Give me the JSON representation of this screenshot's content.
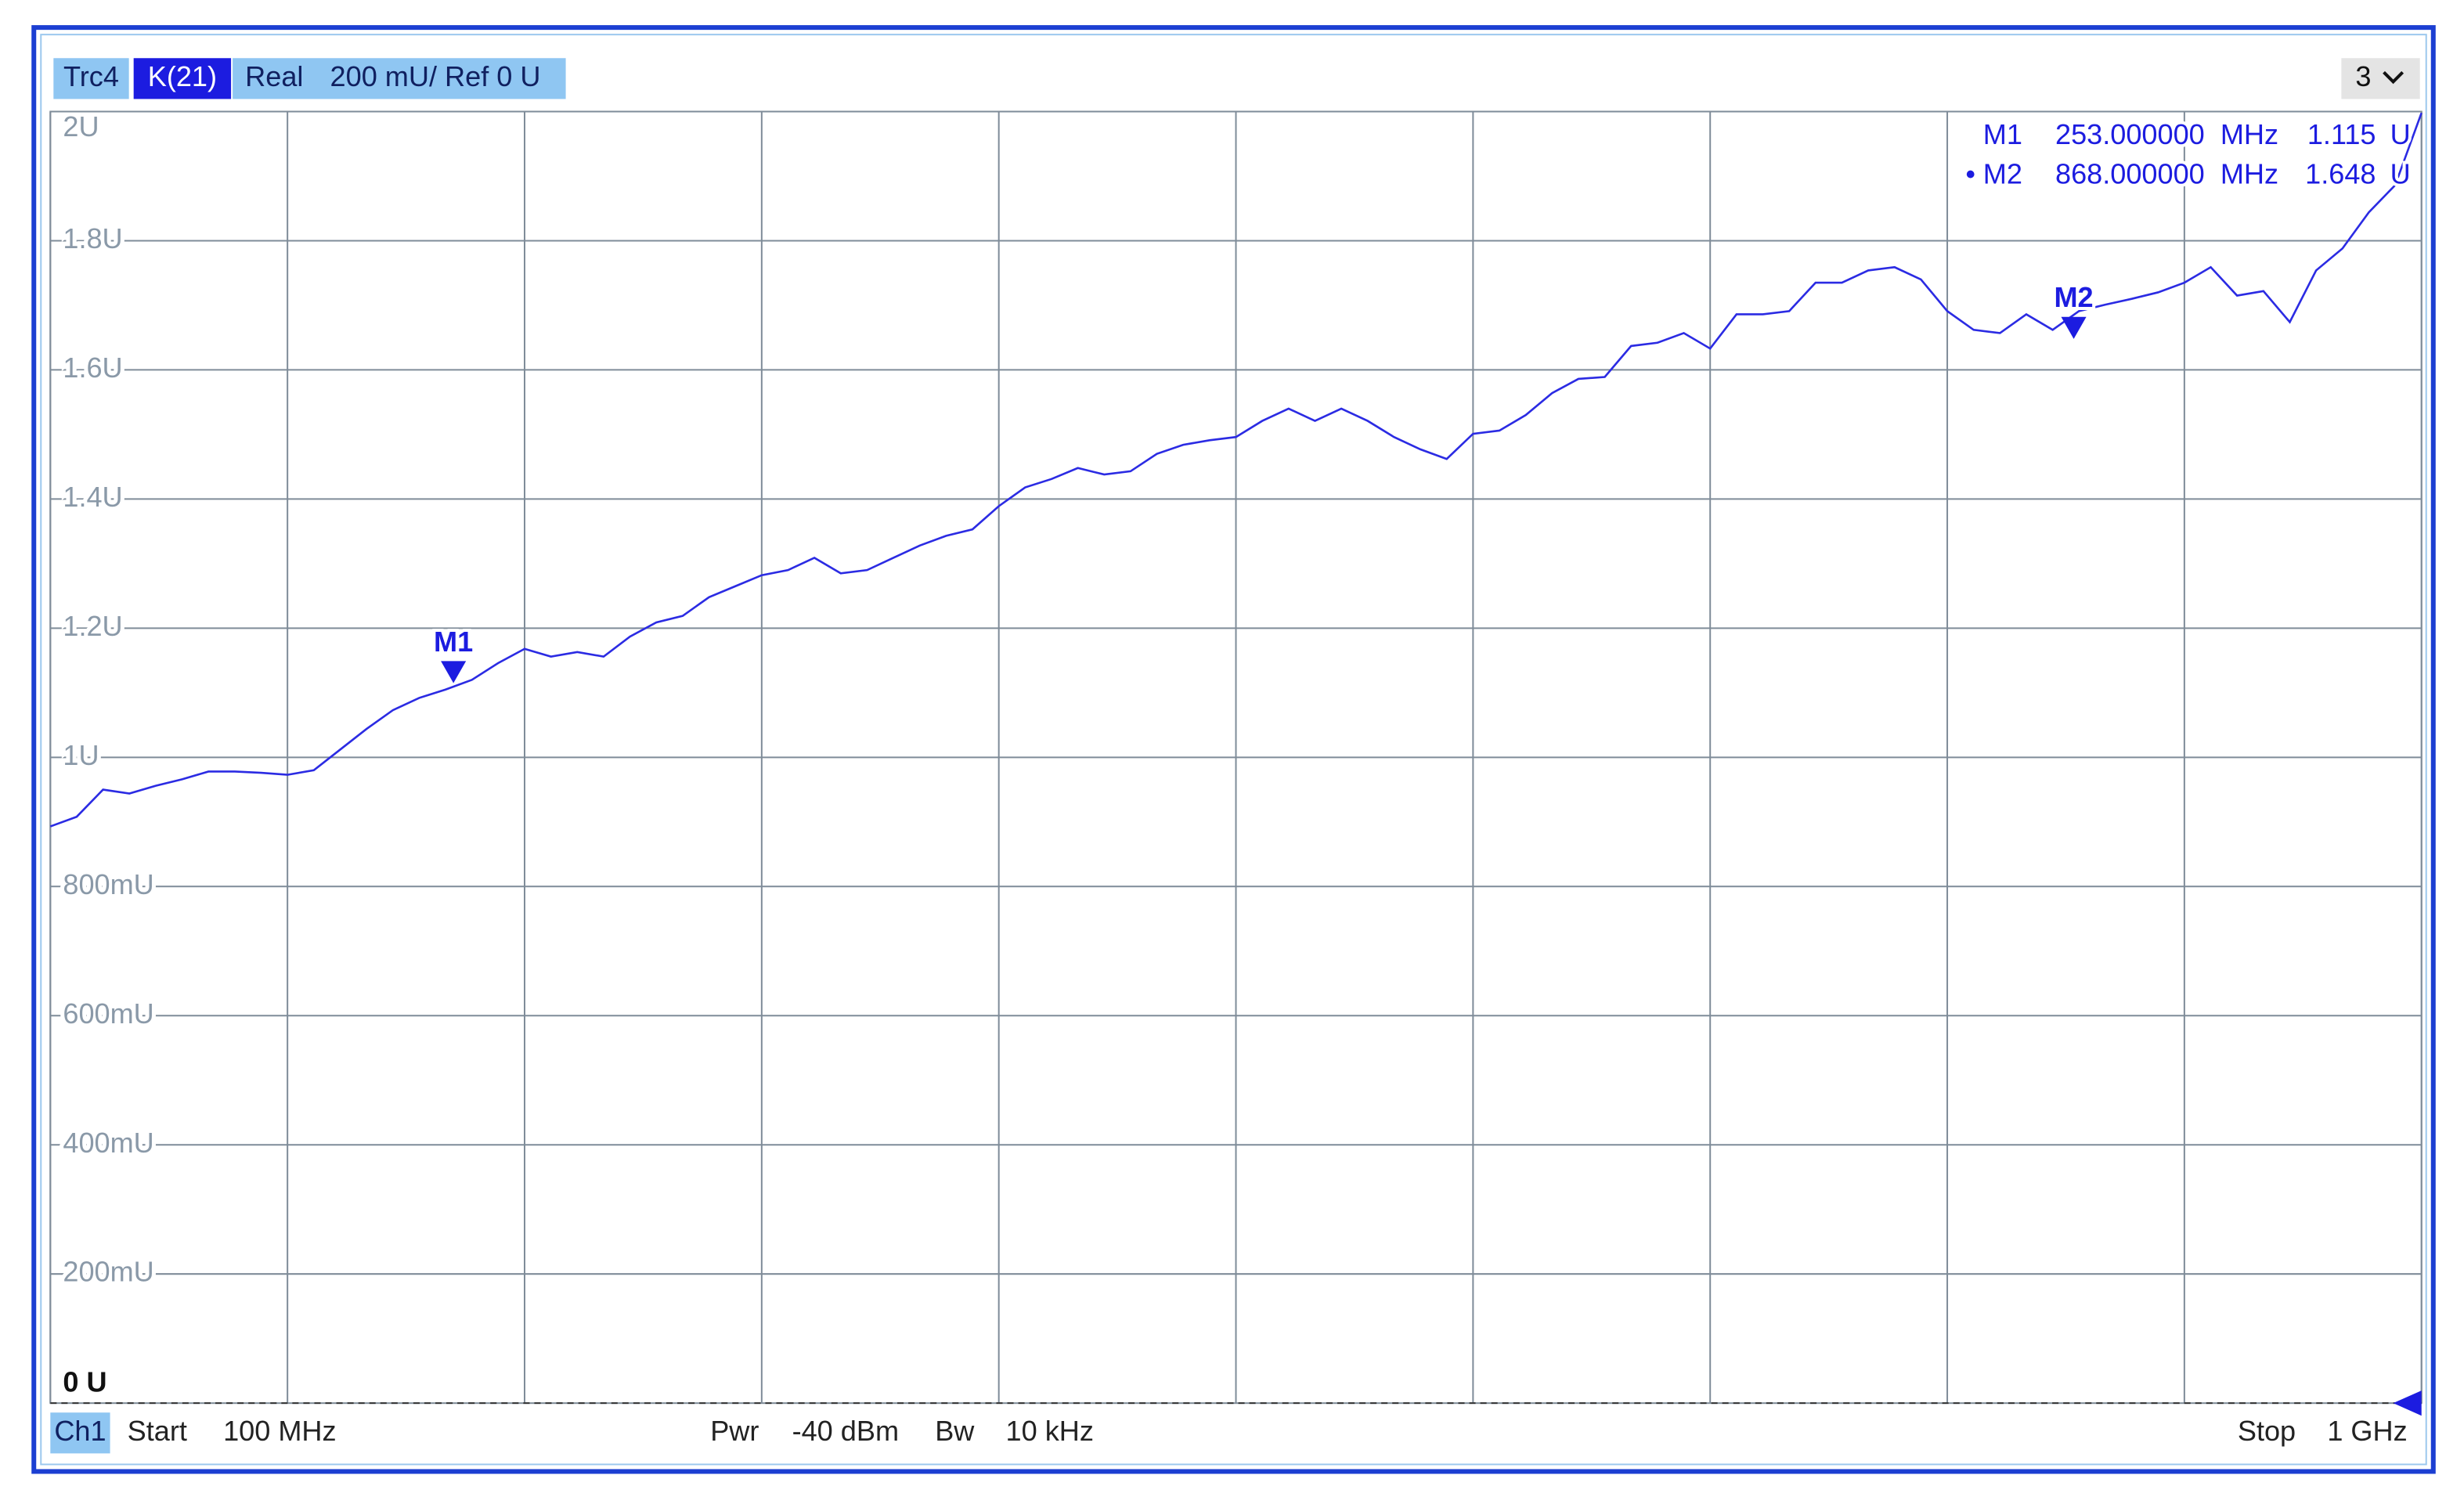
{
  "header": {
    "trace": "Trc4",
    "measurement": "K(21)",
    "format": "Real",
    "scale": "200 mU/ Ref 0 U",
    "channel_select": "3"
  },
  "chart_data": {
    "type": "line",
    "x": [
      100,
      110,
      120,
      130,
      140,
      150,
      160,
      170,
      180,
      190,
      200,
      210,
      220,
      230,
      240,
      250,
      260,
      270,
      280,
      290,
      300,
      310,
      320,
      330,
      340,
      350,
      360,
      370,
      380,
      390,
      400,
      410,
      420,
      430,
      440,
      450,
      460,
      470,
      480,
      490,
      500,
      510,
      520,
      530,
      540,
      550,
      560,
      570,
      580,
      590,
      600,
      610,
      620,
      630,
      640,
      650,
      660,
      670,
      680,
      690,
      700,
      710,
      720,
      730,
      740,
      750,
      760,
      770,
      780,
      790,
      800,
      810,
      820,
      830,
      840,
      850,
      860,
      870,
      880,
      890,
      900,
      910,
      920,
      930,
      940,
      950,
      960,
      970,
      980,
      990,
      1000
    ],
    "values": [
      0.893,
      0.908,
      0.95,
      0.944,
      0.956,
      0.966,
      0.978,
      0.978,
      0.976,
      0.973,
      0.98,
      1.012,
      1.044,
      1.073,
      1.092,
      1.105,
      1.12,
      1.146,
      1.168,
      1.156,
      1.163,
      1.156,
      1.187,
      1.209,
      1.219,
      1.248,
      1.265,
      1.282,
      1.29,
      1.309,
      1.285,
      1.29,
      1.309,
      1.328,
      1.343,
      1.353,
      1.389,
      1.418,
      1.431,
      1.448,
      1.438,
      1.443,
      1.47,
      1.484,
      1.491,
      1.496,
      1.521,
      1.54,
      1.521,
      1.54,
      1.521,
      1.496,
      1.477,
      1.462,
      1.501,
      1.506,
      1.53,
      1.564,
      1.586,
      1.589,
      1.637,
      1.642,
      1.657,
      1.633,
      1.686,
      1.686,
      1.691,
      1.735,
      1.735,
      1.754,
      1.759,
      1.74,
      1.691,
      1.662,
      1.657,
      1.686,
      1.662,
      1.691,
      1.701,
      1.71,
      1.72,
      1.735,
      1.759,
      1.715,
      1.722,
      1.674,
      1.754,
      1.788,
      1.844,
      1.886,
      1.998
    ],
    "color": "#2b2be3",
    "xlim": [
      100,
      1000
    ],
    "xticks": [
      100,
      190,
      280,
      370,
      460,
      550,
      640,
      730,
      820,
      910,
      1000
    ],
    "ylim": [
      0,
      2
    ],
    "yticks": [
      {
        "value": 0,
        "label": "0 U"
      },
      {
        "value": 0.2,
        "label": "200mU"
      },
      {
        "value": 0.4,
        "label": "400mU"
      },
      {
        "value": 0.6,
        "label": "600mU"
      },
      {
        "value": 0.8,
        "label": "800mU"
      },
      {
        "value": 1,
        "label": "1U"
      },
      {
        "value": 1.2,
        "label": "1.2U"
      },
      {
        "value": 1.4,
        "label": "1.4U"
      },
      {
        "value": 1.6,
        "label": "1.6U"
      },
      {
        "value": 1.8,
        "label": "1.8U"
      },
      {
        "value": 2,
        "label": "2U"
      }
    ],
    "grid": true
  },
  "markers": [
    {
      "name": "M1",
      "x": 253,
      "x_label": "253.000000",
      "x_unit": "MHz",
      "value": 1.115,
      "value_unit": "U"
    },
    {
      "name": "M2",
      "x": 868,
      "x_label": "868.000000",
      "x_unit": "MHz",
      "value": 1.648,
      "value_unit": "U",
      "active": "•"
    }
  ],
  "footer": {
    "channel": "Ch1",
    "start_label": "Start",
    "start": "100 MHz",
    "power_label": "Pwr",
    "power": "-40 dBm",
    "bandwidth_label": "Bw",
    "bandwidth": "10 kHz",
    "stop_label": "Stop",
    "stop": "1 GHz"
  }
}
